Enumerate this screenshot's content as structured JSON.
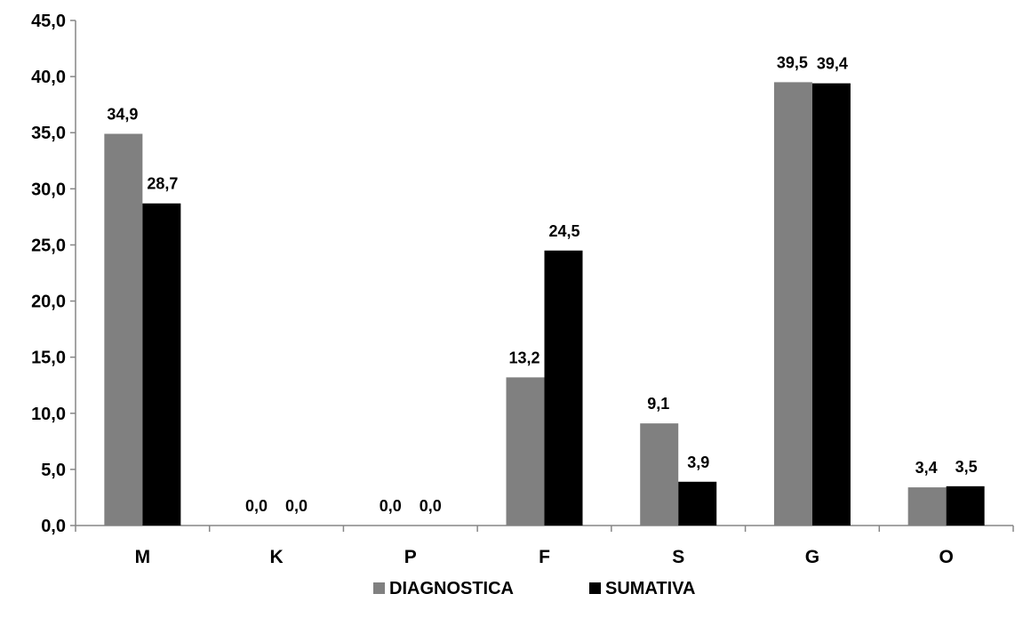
{
  "chart_data": {
    "type": "bar",
    "categories": [
      "M",
      "K",
      "P",
      "F",
      "S",
      "G",
      "O"
    ],
    "series": [
      {
        "name": "DIAGNOSTICA",
        "values": [
          34.9,
          0.0,
          0.0,
          13.2,
          9.1,
          39.5,
          3.4
        ],
        "labels": [
          "34,9",
          "0,0",
          "0,0",
          "13,2",
          "9,1",
          "39,5",
          "3,4"
        ],
        "color": "#808080"
      },
      {
        "name": "SUMATIVA",
        "values": [
          28.7,
          0.0,
          0.0,
          24.5,
          3.9,
          39.4,
          3.5
        ],
        "labels": [
          "28,7",
          "0,0",
          "0,0",
          "24,5",
          "3,9",
          "39,4",
          "3,5"
        ],
        "color": "#000000"
      }
    ],
    "ylim": [
      0,
      45
    ],
    "yticks": [
      0,
      5,
      10,
      15,
      20,
      25,
      30,
      35,
      40,
      45
    ],
    "ytick_labels": [
      "0,0",
      "5,0",
      "10,0",
      "15,0",
      "20,0",
      "25,0",
      "30,0",
      "35,0",
      "40,0",
      "45,0"
    ],
    "grid": false,
    "legend_position": "bottom"
  }
}
